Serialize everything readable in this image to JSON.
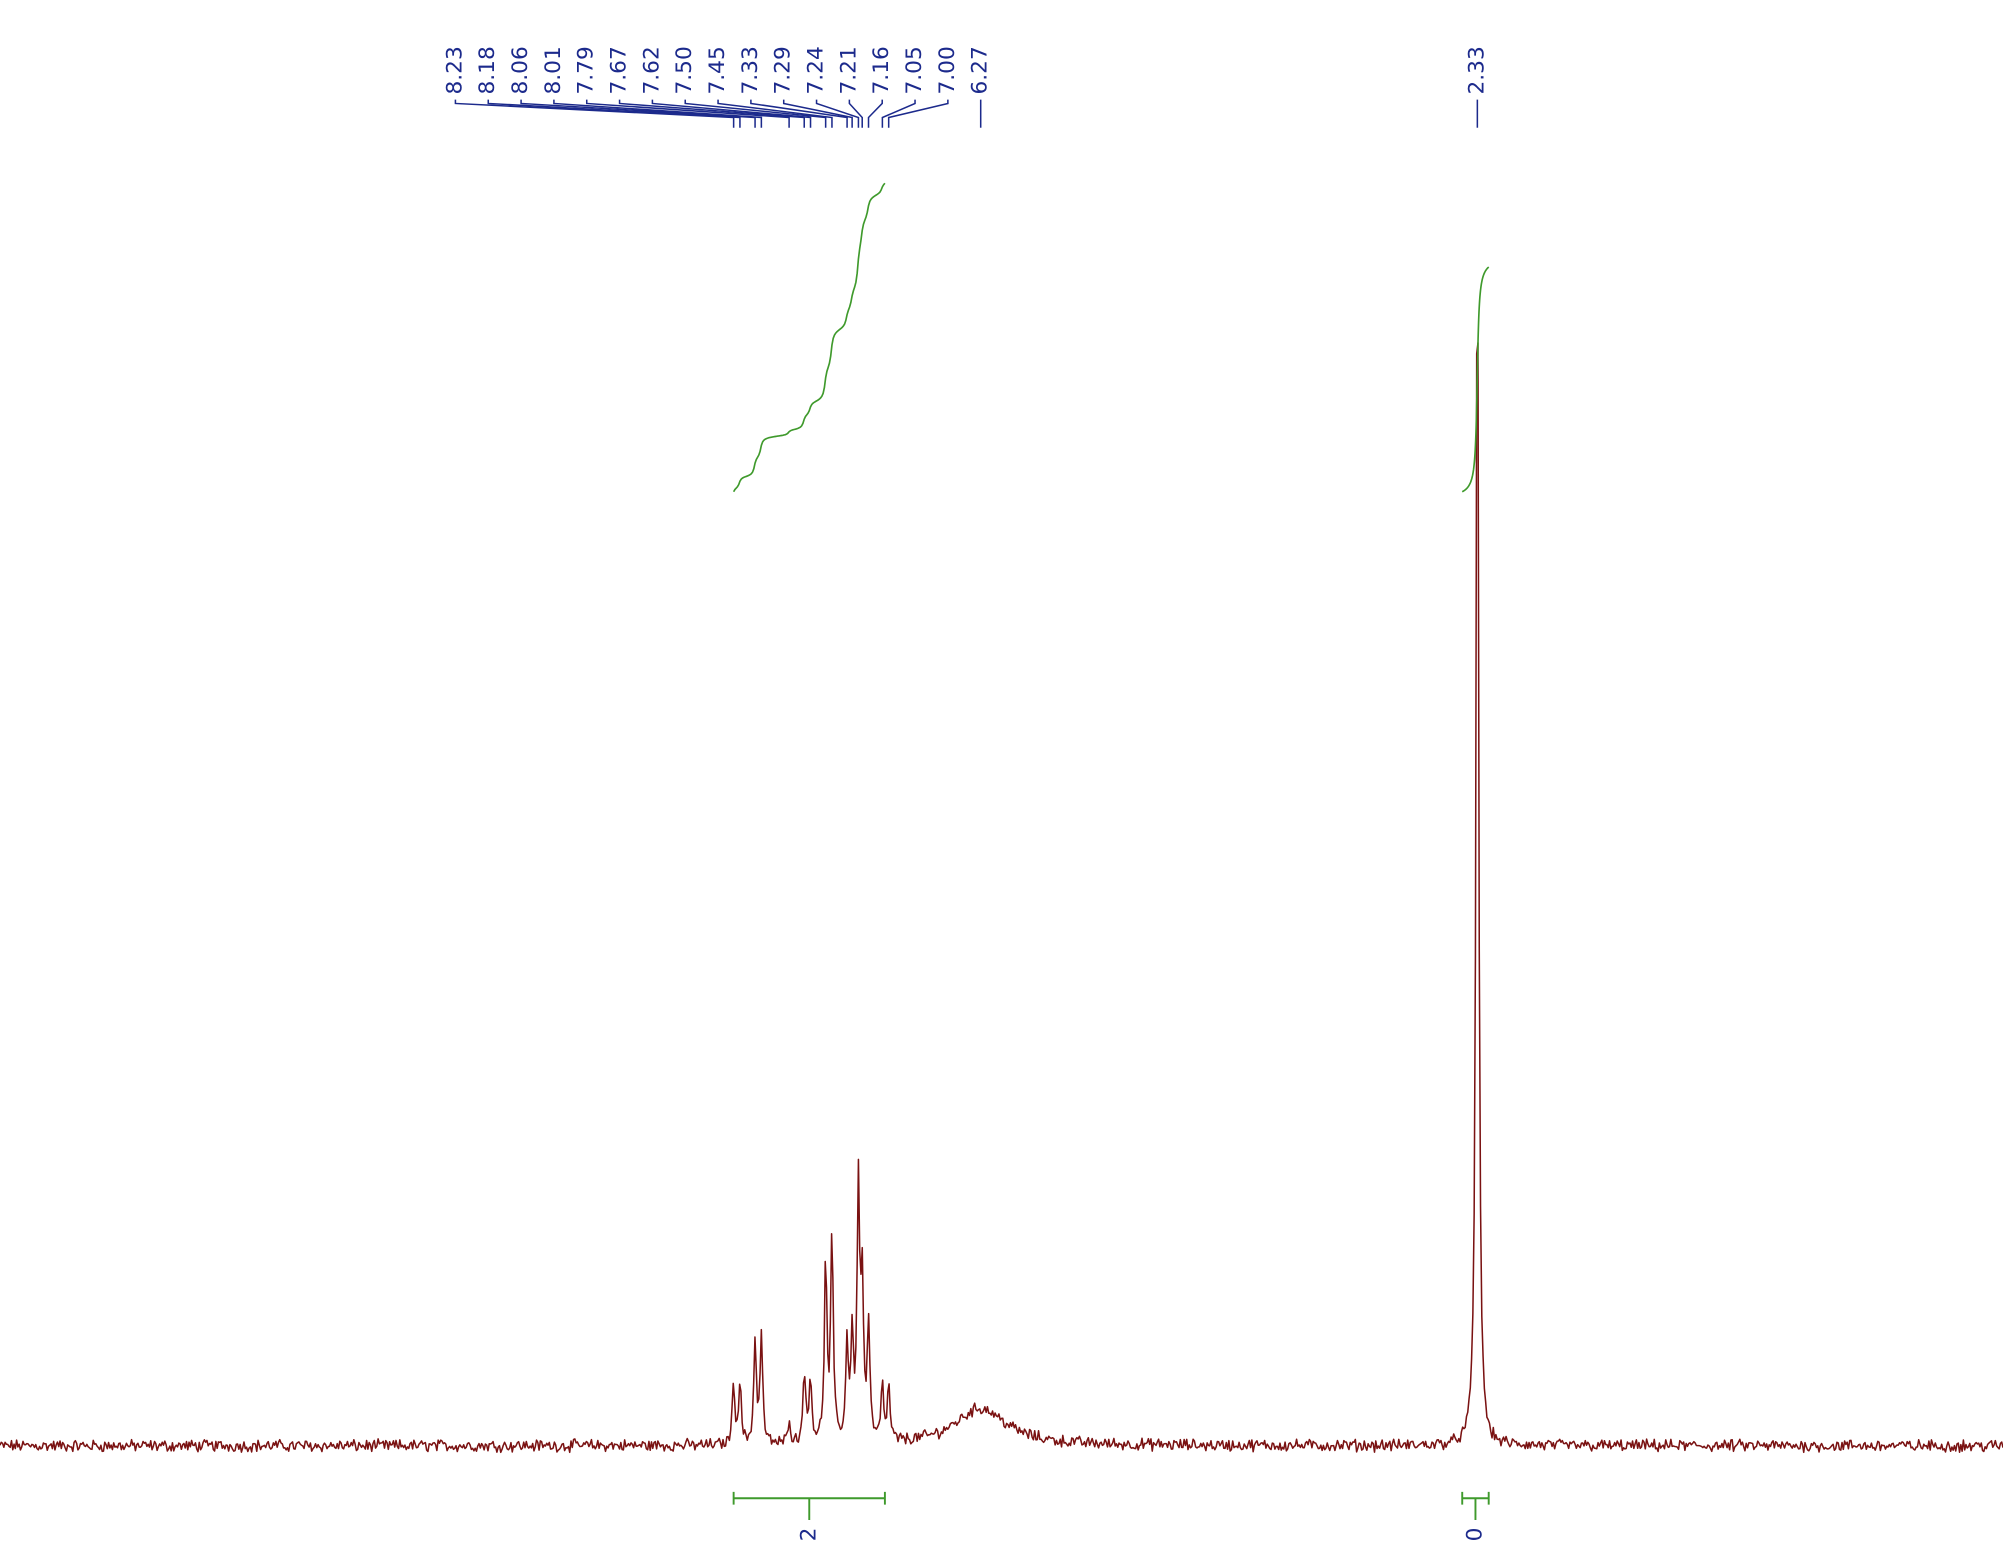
{
  "chart_data": {
    "type": "spectrum",
    "peaks": [
      8.23,
      8.18,
      8.06,
      8.01,
      7.79,
      7.67,
      7.62,
      {
        "value": 7.5,
        "label": "7.50"
      },
      7.45,
      7.33,
      7.29,
      7.24,
      7.21,
      7.16,
      7.05,
      {
        "value": 7,
        "label": "7.00"
      },
      6.27,
      2.33
    ],
    "intensities": [
      4.9,
      4.8,
      8.1,
      8.5,
      2,
      5.8,
      5.2,
      13.9,
      16,
      7.5,
      8,
      19.7,
      11.6,
      9,
      4.2,
      4.2,
      2.9,
      100
    ],
    "linewidths": [
      0.012,
      0.012,
      0.012,
      0.012,
      0.012,
      0.012,
      0.012,
      0.012,
      0.012,
      0.012,
      0.012,
      0.012,
      0.012,
      0.012,
      0.012,
      0.012,
      0.25,
      0.012
    ],
    "integrals": [
      {
        "from": 8.23,
        "to": 7.03,
        "label": "2"
      },
      {
        "from": 2.45,
        "to": 2.24,
        "label": "0"
      }
    ],
    "xlim": [
      14.05,
      -1.84
    ],
    "ylim": [
      0,
      100
    ],
    "trace_color": "#7a1212",
    "label_color": "#1c2a8c",
    "integral_color": "#3f9a2c"
  }
}
